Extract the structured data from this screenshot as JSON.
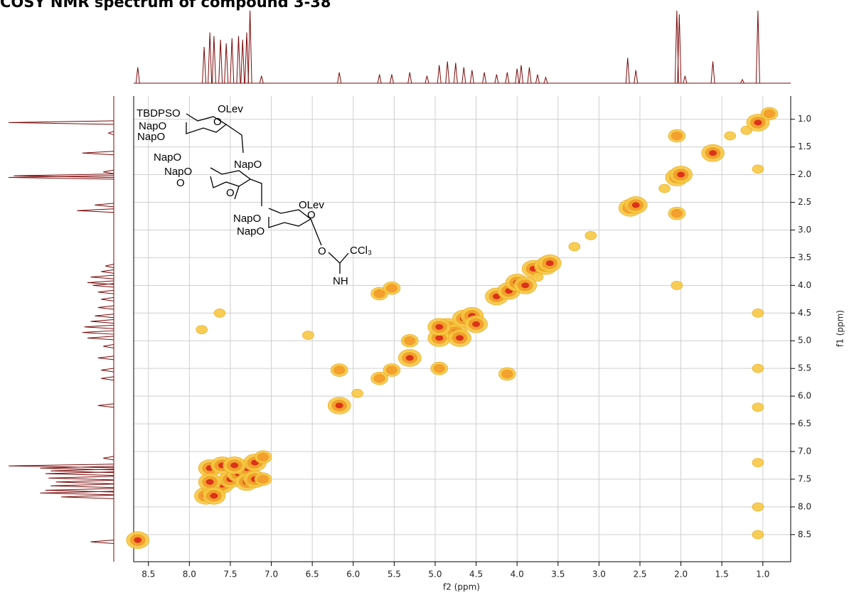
{
  "chart_data": {
    "type": "contour",
    "title": "COSY NMR spectrum of compound 3-38",
    "xlabel": "f2 (ppm)",
    "ylabel": "f1 (ppm)",
    "xlim": [
      8.68,
      0.66
    ],
    "ylim": [
      0.58,
      8.99
    ],
    "xticks": [
      8.5,
      {
        "value": 8,
        "label": "8.0"
      },
      7.5,
      {
        "value": 7,
        "label": "7.0"
      },
      6.5,
      {
        "value": 6,
        "label": "6.0"
      },
      5.5,
      {
        "value": 5,
        "label": "5.0"
      },
      4.5,
      {
        "value": 4,
        "label": "4.0"
      },
      3.5,
      {
        "value": 3,
        "label": "3.0"
      },
      2.5,
      {
        "value": 2,
        "label": "2.0"
      },
      1.5,
      {
        "value": 1,
        "label": "1.0"
      }
    ],
    "yticks": [
      {
        "value": 1,
        "label": "1.0"
      },
      1.5,
      {
        "value": 2,
        "label": "2.0"
      },
      2.5,
      {
        "value": 3,
        "label": "3.0"
      },
      3.5,
      {
        "value": 4,
        "label": "4.0"
      },
      4.5,
      {
        "value": 5,
        "label": "5.0"
      },
      5.5,
      {
        "value": 6,
        "label": "6.0"
      },
      6.5,
      {
        "value": 7,
        "label": "7.0"
      },
      7.5,
      {
        "value": 8,
        "label": "8.0"
      },
      8.5
    ],
    "grid": true,
    "projection_color": "#7b0a0a",
    "projection": {
      "x": [
        8.63,
        7.82,
        7.75,
        7.7,
        7.62,
        7.55,
        7.48,
        7.4,
        7.35,
        7.3,
        7.26,
        7.12,
        6.17,
        5.68,
        5.53,
        5.31,
        5.1,
        4.95,
        4.85,
        4.75,
        4.65,
        4.55,
        4.4,
        4.25,
        4.12,
        4.0,
        3.95,
        3.85,
        3.75,
        3.65,
        2.65,
        2.55,
        2.05,
        2.02,
        1.95,
        1.61,
        1.25,
        1.06
      ],
      "values": [
        22,
        50,
        70,
        65,
        60,
        55,
        62,
        65,
        60,
        70,
        100,
        10,
        15,
        12,
        12,
        15,
        10,
        25,
        30,
        28,
        22,
        18,
        15,
        12,
        15,
        20,
        25,
        22,
        12,
        8,
        35,
        18,
        100,
        95,
        10,
        30,
        5,
        100
      ]
    },
    "peaks": {
      "x": [
        8.63,
        7.8,
        7.7,
        7.6,
        7.5,
        7.4,
        7.3,
        7.2,
        7.1,
        7.75,
        7.6,
        7.45,
        7.3,
        7.2,
        7.1,
        7.75,
        7.7,
        6.17,
        6.17,
        5.68,
        5.53,
        5.31,
        5.68,
        5.53,
        5.31,
        4.95,
        4.85,
        4.75,
        4.65,
        4.55,
        4.95,
        4.7,
        4.5,
        4.25,
        4.1,
        4.0,
        3.9,
        3.8,
        3.65,
        3.6,
        4.12,
        4.95,
        2.62,
        2.55,
        2.2,
        2.05,
        2.0,
        1.61,
        1.4,
        1.2,
        1.06,
        0.92,
        2.05,
        2.05,
        1.06,
        2.05,
        1.06,
        1.06,
        1.06,
        1.06,
        1.06,
        1.06,
        7.85,
        7.63,
        6.55,
        5.95,
        3.1,
        3.3,
        3.75
      ],
      "y": [
        8.6,
        7.8,
        7.7,
        7.6,
        7.5,
        7.4,
        7.3,
        7.2,
        7.1,
        7.3,
        7.25,
        7.25,
        7.55,
        7.5,
        7.5,
        7.55,
        7.8,
        6.17,
        5.53,
        5.68,
        5.53,
        5.31,
        4.15,
        4.05,
        5.0,
        4.95,
        4.75,
        4.85,
        4.6,
        4.55,
        4.75,
        4.95,
        4.7,
        4.2,
        4.1,
        3.95,
        4.0,
        3.7,
        3.65,
        3.6,
        5.6,
        5.5,
        2.6,
        2.55,
        2.25,
        2.05,
        2.0,
        1.61,
        1.3,
        1.2,
        1.06,
        0.9,
        1.3,
        2.7,
        1.9,
        4.0,
        4.5,
        5.5,
        6.2,
        7.2,
        8.0,
        8.5,
        4.8,
        4.5,
        4.9,
        5.95,
        3.1,
        3.3,
        3.85
      ],
      "intensity": [
        3,
        3,
        3,
        3,
        3,
        3,
        3,
        3,
        2,
        3,
        3,
        3,
        3,
        3,
        2,
        3,
        3,
        3,
        2,
        2,
        2,
        3,
        2,
        2,
        2,
        3,
        3,
        3,
        3,
        3,
        3,
        3,
        3,
        3,
        3,
        3,
        3,
        3,
        3,
        3,
        2,
        2,
        3,
        3,
        1,
        3,
        3,
        3,
        1,
        1,
        3,
        2,
        2,
        2,
        1,
        1,
        1,
        1,
        1,
        1,
        1,
        1,
        1,
        1,
        1,
        1,
        1,
        1,
        1
      ]
    },
    "structure_labels": [
      "TBDPSO",
      "OLev",
      "O",
      "NapO",
      "NapO",
      "NapO",
      "NapO",
      "NapO",
      "O",
      "O",
      "OLev",
      "NapO",
      "NapO",
      "O",
      "O",
      "CCl₃",
      "NH"
    ]
  }
}
